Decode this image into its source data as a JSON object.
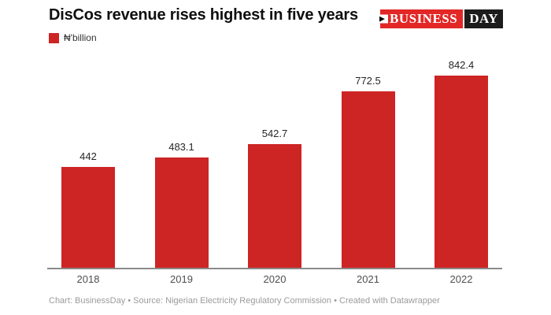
{
  "header": {
    "title": "DisCos revenue rises highest in five years",
    "logo": {
      "arrow_icon": "▶",
      "business": "BUSINESS",
      "day": "DAY"
    }
  },
  "legend": {
    "label": "₦'billion"
  },
  "chart_data": {
    "type": "bar",
    "title": "DisCos revenue rises highest in five years",
    "unit": "₦'billion",
    "categories": [
      "2018",
      "2019",
      "2020",
      "2021",
      "2022"
    ],
    "values": [
      442,
      483.1,
      542.7,
      772.5,
      842.4
    ],
    "value_labels": [
      "442",
      "483.1",
      "542.7",
      "772.5",
      "842.4"
    ],
    "xlabel": "",
    "ylabel": "₦'billion",
    "ylim": [
      0,
      890
    ],
    "grid": "off",
    "legend_position": "top-left",
    "bar_color": "#cd2424"
  },
  "colors": {
    "bar_red": "#cd2424",
    "logo_red": "#e22726",
    "logo_black": "#1c1c1c",
    "axis_line_gray": "#8a8a8a",
    "title_text": "#0f0f0f",
    "value_label_text": "#262626",
    "tick_label_text": "#4f4f4f",
    "footer_text": "#9b9b9b"
  },
  "footer": {
    "text": "Chart: BusinessDay • Source: Nigerian Electricity Regulatory Commission • Created with Datawrapper"
  }
}
